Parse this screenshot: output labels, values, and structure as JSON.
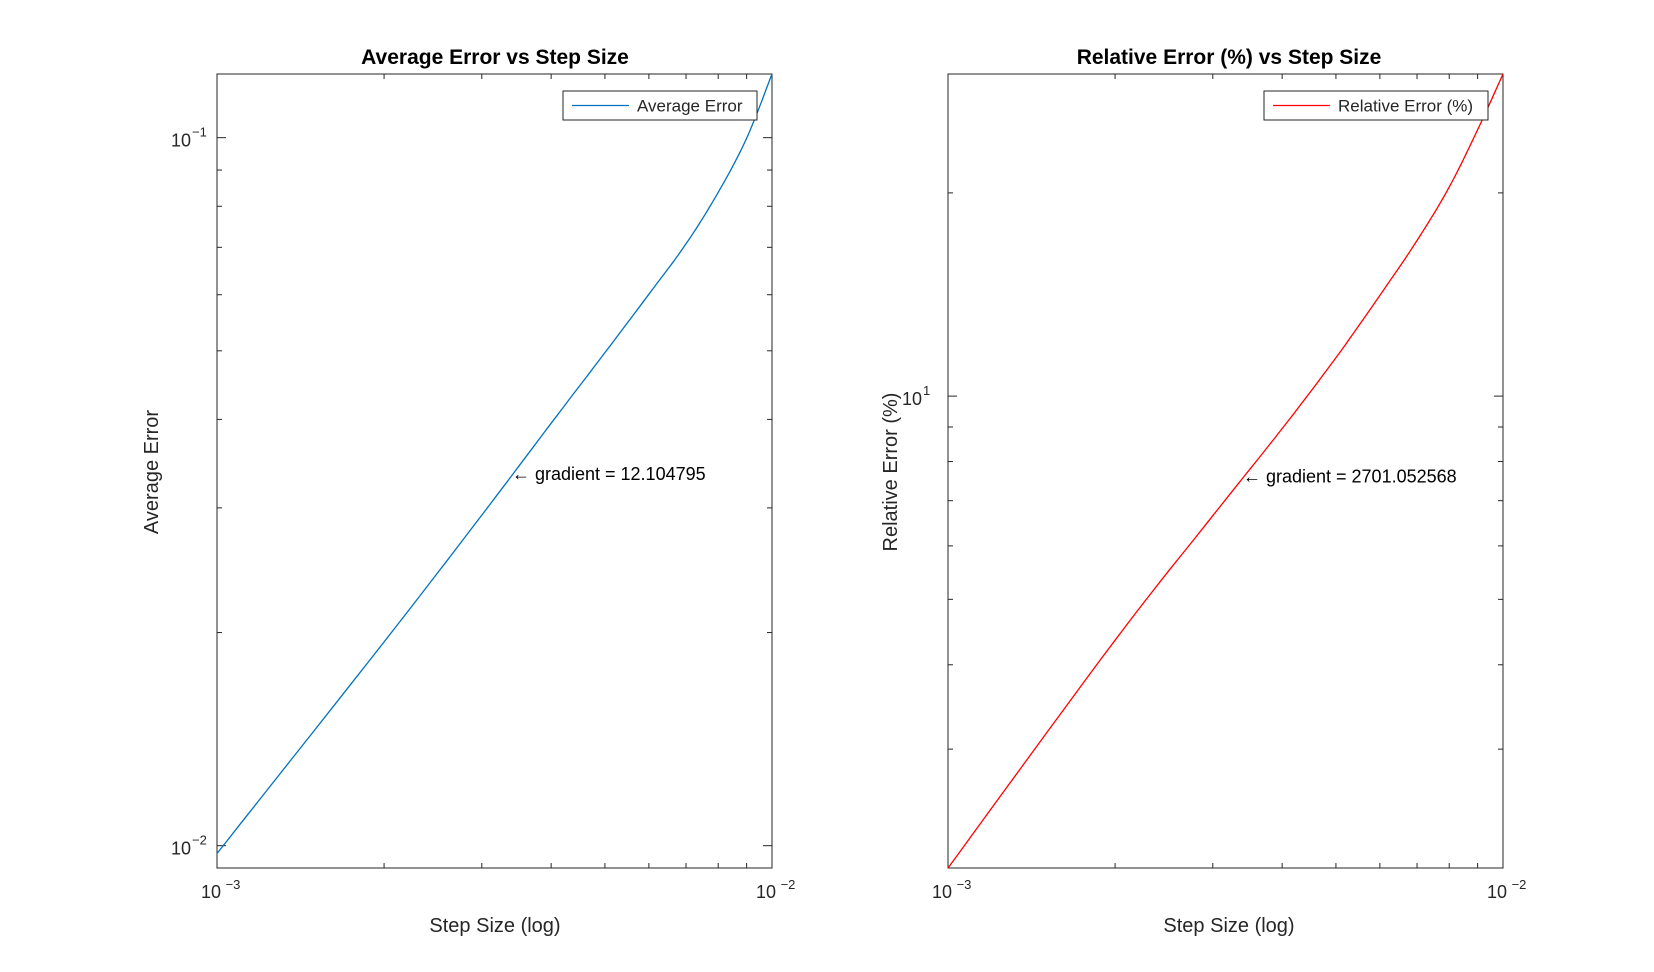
{
  "chart_data": [
    {
      "type": "line",
      "title": "Average Error vs Step Size",
      "xlabel": "Step Size (log)",
      "ylabel": "Average Error",
      "xscale": "log",
      "yscale": "log",
      "xlim": [
        0.001,
        0.01
      ],
      "ylim": [
        0.0093,
        0.123
      ],
      "xticks": [
        {
          "base": "10",
          "exp": "−3"
        },
        {
          "base": "10",
          "exp": "−2"
        }
      ],
      "yticks": [
        {
          "base": "10",
          "exp": "−2",
          "value": 0.01
        },
        {
          "base": "10",
          "exp": "−1",
          "value": 0.1
        }
      ],
      "grid": false,
      "legend_position": "top-right",
      "series": [
        {
          "name": "Average Error",
          "color": "#0072BD",
          "x": [
            0.001,
            0.002,
            0.003,
            0.004,
            0.005,
            0.006,
            0.007,
            0.008,
            0.009,
            0.01
          ],
          "y": [
            0.00975,
            0.0194,
            0.0293,
            0.0395,
            0.0497,
            0.0601,
            0.0708,
            0.0837,
            0.0998,
            0.123
          ]
        }
      ],
      "annotation": {
        "text": "← gradient = 12.104795",
        "x": 0.0034,
        "y": 0.0335
      }
    },
    {
      "type": "line",
      "title": "Relative Error (%) vs Step Size",
      "xlabel": "Step Size (log)",
      "ylabel": "Relative Error (%)",
      "xscale": "log",
      "yscale": "log",
      "xlim": [
        0.001,
        0.01
      ],
      "ylim": [
        2.0,
        30.0
      ],
      "xticks": [
        {
          "base": "10",
          "exp": "−3"
        },
        {
          "base": "10",
          "exp": "−2"
        }
      ],
      "yticks": [
        {
          "base": "10",
          "exp": "1",
          "value": 10
        }
      ],
      "grid": false,
      "legend_position": "top-right",
      "series": [
        {
          "name": "Relative Error (%)",
          "color": "#FF0000",
          "x": [
            0.001,
            0.002,
            0.003,
            0.004,
            0.005,
            0.006,
            0.007,
            0.008,
            0.009,
            0.01
          ],
          "y": [
            2.0,
            4.35,
            6.65,
            8.95,
            11.4,
            14.1,
            17.0,
            20.4,
            24.8,
            30.0
          ]
        }
      ],
      "annotation": {
        "text": "← gradient = 2701.052568",
        "x": 0.0034,
        "y": 7.6
      }
    }
  ]
}
